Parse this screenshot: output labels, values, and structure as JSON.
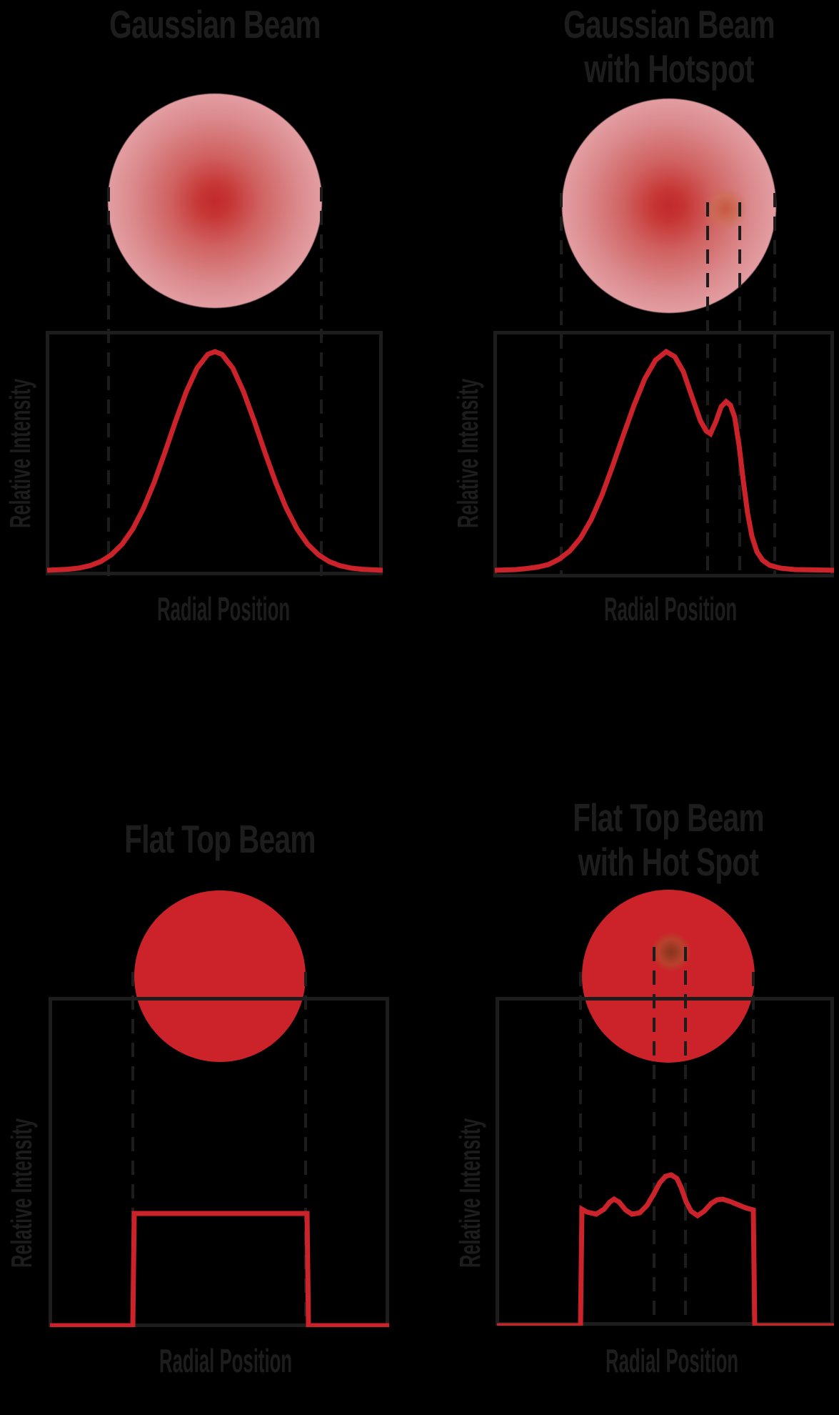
{
  "colors": {
    "background": "#000000",
    "ink": "#1e1d1d",
    "red": "#cc2229",
    "gaussian_core": "#c22a2d",
    "gaussian_edge_pink": "#ebb3b8"
  },
  "axis": {
    "x_label": "Radial Position",
    "y_label": "Relative Intensity"
  },
  "panels": [
    {
      "id": "gaussian",
      "title_lines": [
        "Gaussian Beam"
      ],
      "beam": {
        "shape": "gaussian",
        "hotspot": false
      },
      "curve": {
        "type": "line",
        "points": [
          [
            0,
            333
          ],
          [
            15,
            332.3
          ],
          [
            30,
            331.5
          ],
          [
            45,
            329.8
          ],
          [
            60,
            326.5
          ],
          [
            75,
            320.8
          ],
          [
            90,
            311.3
          ],
          [
            105,
            296.6
          ],
          [
            120,
            275.2
          ],
          [
            135,
            246.2
          ],
          [
            150,
            209.9
          ],
          [
            165,
            167.9
          ],
          [
            180,
            124
          ],
          [
            195,
            82.9
          ],
          [
            210,
            50.1
          ],
          [
            225,
            30.9
          ],
          [
            235,
            27
          ],
          [
            245,
            30.9
          ],
          [
            260,
            50.1
          ],
          [
            275,
            82.9
          ],
          [
            290,
            124
          ],
          [
            305,
            167.9
          ],
          [
            320,
            209.9
          ],
          [
            335,
            246.2
          ],
          [
            350,
            275.2
          ],
          [
            365,
            296.6
          ],
          [
            380,
            311.3
          ],
          [
            395,
            320.8
          ],
          [
            410,
            326.5
          ],
          [
            425,
            329.8
          ],
          [
            440,
            331.5
          ],
          [
            455,
            332.3
          ],
          [
            470,
            333
          ]
        ]
      }
    },
    {
      "id": "gaussian-hotspot",
      "title_lines": [
        "Gaussian Beam",
        "with Hotspot"
      ],
      "beam": {
        "shape": "gaussian",
        "hotspot": true
      },
      "curve": {
        "type": "line",
        "points": [
          [
            0,
            335
          ],
          [
            15,
            334.5
          ],
          [
            30,
            334
          ],
          [
            45,
            332.5
          ],
          [
            60,
            330.5
          ],
          [
            75,
            327
          ],
          [
            90,
            319.5
          ],
          [
            105,
            308
          ],
          [
            120,
            290
          ],
          [
            135,
            264
          ],
          [
            150,
            230
          ],
          [
            165,
            189
          ],
          [
            180,
            146
          ],
          [
            195,
            104
          ],
          [
            210,
            67
          ],
          [
            225,
            41
          ],
          [
            240,
            29
          ],
          [
            252,
            36
          ],
          [
            264,
            57
          ],
          [
            276,
            92
          ],
          [
            288,
            126
          ],
          [
            296,
            140
          ],
          [
            302,
            144
          ],
          [
            310,
            126
          ],
          [
            317,
            106
          ],
          [
            324,
            99
          ],
          [
            330,
            104
          ],
          [
            336,
            121
          ],
          [
            342,
            160
          ],
          [
            348,
            210
          ],
          [
            354,
            255
          ],
          [
            360,
            287
          ],
          [
            367,
            309
          ],
          [
            375,
            321
          ],
          [
            385,
            328
          ],
          [
            400,
            332
          ],
          [
            420,
            334
          ],
          [
            450,
            334.5
          ],
          [
            475,
            335
          ]
        ]
      }
    },
    {
      "id": "flat-top",
      "title_lines": [
        "Flat Top Beam"
      ],
      "beam": {
        "shape": "flat-top",
        "hotspot": false
      },
      "curve": {
        "type": "line",
        "points": [
          [
            0,
            458
          ],
          [
            116,
            458
          ],
          [
            118,
            301
          ],
          [
            360,
            301
          ],
          [
            362,
            458
          ],
          [
            475,
            458
          ]
        ]
      }
    },
    {
      "id": "flat-top-hotspot",
      "title_lines": [
        "Flat Top Beam",
        "with Hot Spot"
      ],
      "beam": {
        "shape": "flat-top",
        "hotspot": true
      },
      "curve": {
        "type": "line",
        "points": [
          [
            0,
            458
          ],
          [
            117,
            458
          ],
          [
            119,
            295
          ],
          [
            126,
            299
          ],
          [
            139,
            302
          ],
          [
            150,
            295
          ],
          [
            158,
            285
          ],
          [
            164,
            281
          ],
          [
            171,
            285
          ],
          [
            180,
            296
          ],
          [
            189,
            302
          ],
          [
            200,
            300
          ],
          [
            210,
            290
          ],
          [
            220,
            273
          ],
          [
            228,
            258
          ],
          [
            236,
            249
          ],
          [
            244,
            247
          ],
          [
            252,
            252
          ],
          [
            258,
            265
          ],
          [
            265,
            285
          ],
          [
            272,
            298
          ],
          [
            281,
            304
          ],
          [
            290,
            298
          ],
          [
            300,
            287
          ],
          [
            308,
            282
          ],
          [
            316,
            281
          ],
          [
            326,
            284
          ],
          [
            338,
            289
          ],
          [
            348,
            293
          ],
          [
            359,
            296
          ],
          [
            361,
            458
          ],
          [
            472,
            458
          ]
        ]
      }
    }
  ]
}
